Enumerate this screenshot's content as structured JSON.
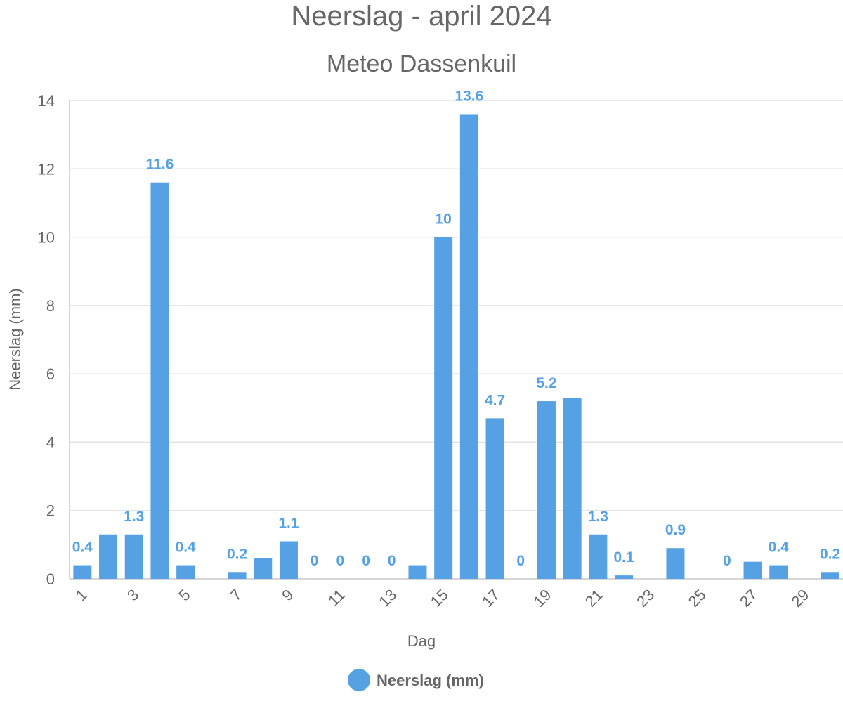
{
  "chart_data": {
    "type": "bar",
    "title": "Neerslag - april 2024",
    "subtitle": "Meteo Dassenkuil",
    "xlabel": "Dag",
    "ylabel": "Neerslag (mm)",
    "ylim": [
      0,
      14
    ],
    "yticks": [
      0,
      2,
      4,
      6,
      8,
      10,
      12,
      14
    ],
    "grid": true,
    "legend_position": "bottom",
    "bar_color": "#55a1e4",
    "label_color": "#55a1e4",
    "categories": [
      1,
      2,
      3,
      4,
      5,
      6,
      7,
      8,
      9,
      10,
      11,
      12,
      13,
      14,
      15,
      16,
      17,
      18,
      19,
      20,
      21,
      22,
      23,
      24,
      25,
      26,
      27,
      28,
      29,
      30
    ],
    "x_tick_labels": [
      "1",
      "3",
      "5",
      "7",
      "9",
      "11",
      "13",
      "15",
      "17",
      "19",
      "21",
      "23",
      "25",
      "27",
      "29"
    ],
    "series": [
      {
        "name": "Neerslag (mm)",
        "values": [
          0.4,
          1.3,
          1.3,
          11.6,
          0.4,
          0,
          0.2,
          0.6,
          1.1,
          0,
          0,
          0,
          0,
          0.4,
          10,
          13.6,
          4.7,
          0,
          5.2,
          5.3,
          1.3,
          0.1,
          0,
          0.9,
          0,
          0,
          0.5,
          0.4,
          0,
          0.2
        ],
        "data_labels": [
          "0.4",
          "",
          "1.3",
          "11.6",
          "0.4",
          "",
          "0.2",
          "",
          "1.1",
          "0",
          "0",
          "0",
          "0",
          "",
          "10",
          "13.6",
          "4.7",
          "0",
          "5.2",
          "",
          "1.3",
          "0.1",
          "",
          "0.9",
          "",
          "0",
          "",
          "0.4",
          "",
          "0.2"
        ]
      }
    ]
  }
}
